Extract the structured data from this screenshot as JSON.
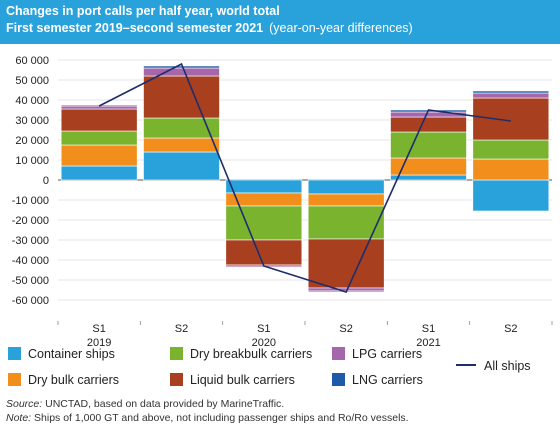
{
  "header": {
    "title": "Changes in port calls per half year, world total",
    "subtitle": "First semester 2019–second semester 2021",
    "subtitle_note": "(year-on-year differences)"
  },
  "chart_data": {
    "type": "bar",
    "stacked": true,
    "title": "Changes in port calls per half year, world total",
    "subtitle": "First semester 2019–second semester 2021 (year-on-year differences)",
    "xlabel": "",
    "ylabel": "",
    "ylim": [
      -60000,
      60000
    ],
    "y_ticks": [
      60000,
      50000,
      40000,
      30000,
      20000,
      10000,
      0,
      -10000,
      -20000,
      -30000,
      -40000,
      -50000,
      -60000
    ],
    "y_tick_labels": [
      "60 000",
      "50 000",
      "40 000",
      "30 000",
      "20 000",
      "10 000",
      "0",
      "-10 000",
      "-20 000",
      "-30 000",
      "-40 000",
      "-50 000",
      "-60 000"
    ],
    "categories": [
      {
        "half": "S1",
        "year": "2019"
      },
      {
        "half": "S2",
        "year": ""
      },
      {
        "half": "S1",
        "year": "2020"
      },
      {
        "half": "S2",
        "year": ""
      },
      {
        "half": "S1",
        "year": "2021"
      },
      {
        "half": "S2",
        "year": ""
      }
    ],
    "series": [
      {
        "name": "Container ships",
        "color": "#29a2db",
        "values": [
          7000,
          14000,
          -6500,
          -7000,
          2500,
          -15500
        ]
      },
      {
        "name": "Dry bulk carriers",
        "color": "#f28e1c",
        "values": [
          10500,
          7000,
          -6500,
          -6000,
          8500,
          10500
        ]
      },
      {
        "name": "Dry breakbulk carriers",
        "color": "#7ab32e",
        "values": [
          7000,
          10000,
          -17000,
          -16500,
          13000,
          9500
        ]
      },
      {
        "name": "Liquid bulk carriers",
        "color": "#a83f1f",
        "values": [
          11000,
          21000,
          -12500,
          -24500,
          7500,
          21000
        ]
      },
      {
        "name": "LPG carriers",
        "color": "#a566ac",
        "values": [
          1500,
          4000,
          -1000,
          -1500,
          2500,
          2500
        ]
      },
      {
        "name": "LNG carriers",
        "color": "#1d5aa8",
        "values": [
          500,
          1000,
          -300,
          -500,
          1000,
          1000
        ]
      }
    ],
    "line": {
      "name": "All ships",
      "color": "#1f2d6b",
      "values": [
        37000,
        58000,
        -43000,
        -56000,
        35000,
        29500
      ]
    },
    "grid": true,
    "legend_position": "bottom"
  },
  "legend": {
    "items": [
      {
        "label": "Container ships",
        "color": "#29a2db"
      },
      {
        "label": "Dry breakbulk carriers",
        "color": "#7ab32e"
      },
      {
        "label": "LPG carriers",
        "color": "#a566ac"
      },
      {
        "label": "Dry bulk carriers",
        "color": "#f28e1c"
      },
      {
        "label": "Liquid bulk carriers",
        "color": "#a83f1f"
      },
      {
        "label": "LNG carriers",
        "color": "#1d5aa8"
      }
    ],
    "line_label": "All ships"
  },
  "notes": {
    "source_label": "Source:",
    "source_text": "UNCTAD, based on data provided by MarineTraffic.",
    "note_label": "Note:",
    "note_text": "Ships of 1,000 GT and above, not including passenger ships and Ro/Ro vessels."
  }
}
